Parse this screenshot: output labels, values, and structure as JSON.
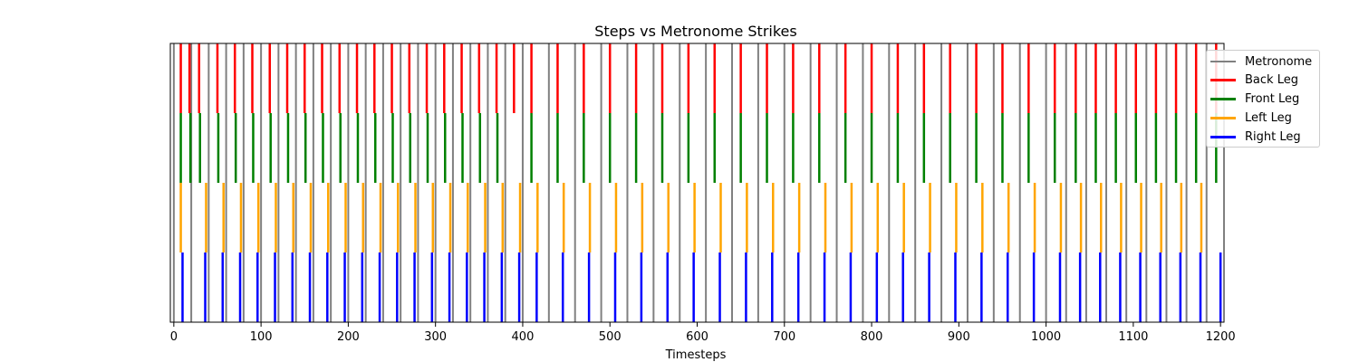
{
  "chart_data": {
    "type": "event_raster",
    "title": "Steps vs Metronome Strikes",
    "xlabel": "Timesteps",
    "ylabel": "",
    "xlim": [
      -4,
      1204
    ],
    "xticks": [
      0,
      100,
      200,
      300,
      400,
      500,
      600,
      700,
      800,
      900,
      1000,
      1100,
      1200
    ],
    "grid": false,
    "legend_position": "upper-right-outside",
    "metronome": {
      "name": "Metronome",
      "color": "#808080",
      "times": [
        0,
        20,
        40,
        60,
        80,
        100,
        120,
        140,
        160,
        180,
        200,
        220,
        240,
        260,
        280,
        300,
        320,
        340,
        360,
        380,
        400,
        430,
        460,
        490,
        520,
        550,
        580,
        610,
        640,
        670,
        700,
        730,
        760,
        790,
        820,
        850,
        880,
        910,
        940,
        970,
        1000,
        1023,
        1046,
        1069,
        1092,
        1115,
        1138,
        1161,
        1184
      ]
    },
    "series": [
      {
        "name": "Back Leg",
        "color": "#ff0000",
        "times": [
          8,
          18,
          29,
          50,
          70,
          90,
          110,
          130,
          150,
          170,
          190,
          210,
          230,
          250,
          270,
          290,
          310,
          330,
          350,
          370,
          390,
          410,
          440,
          470,
          500,
          530,
          560,
          590,
          620,
          650,
          680,
          710,
          740,
          770,
          800,
          830,
          860,
          890,
          920,
          950,
          980,
          1010,
          1034,
          1057,
          1080,
          1103,
          1126,
          1149,
          1172,
          1195
        ]
      },
      {
        "name": "Front Leg",
        "color": "#008000",
        "times": [
          8,
          19,
          30,
          51,
          71,
          91,
          111,
          131,
          151,
          171,
          191,
          211,
          231,
          251,
          271,
          291,
          311,
          331,
          351,
          371,
          410,
          440,
          470,
          500,
          530,
          560,
          590,
          620,
          650,
          680,
          710,
          740,
          770,
          800,
          830,
          860,
          890,
          920,
          950,
          980,
          1010,
          1034,
          1057,
          1080,
          1103,
          1126,
          1149,
          1172,
          1195
        ]
      },
      {
        "name": "Left Leg",
        "color": "#ffa500",
        "times": [
          8,
          37,
          57,
          77,
          97,
          117,
          137,
          157,
          177,
          197,
          217,
          237,
          257,
          277,
          297,
          317,
          337,
          357,
          377,
          397,
          417,
          447,
          477,
          507,
          537,
          567,
          597,
          627,
          657,
          687,
          717,
          747,
          777,
          807,
          837,
          867,
          897,
          927,
          957,
          987,
          1017,
          1040,
          1063,
          1086,
          1109,
          1132,
          1155,
          1178
        ]
      },
      {
        "name": "Right Leg",
        "color": "#0000ff",
        "times": [
          10,
          36,
          56,
          76,
          96,
          116,
          136,
          156,
          176,
          196,
          216,
          236,
          256,
          276,
          296,
          316,
          336,
          356,
          376,
          396,
          416,
          446,
          476,
          506,
          536,
          566,
          596,
          626,
          656,
          686,
          716,
          746,
          776,
          806,
          836,
          866,
          896,
          926,
          956,
          986,
          1016,
          1039,
          1062,
          1085,
          1108,
          1131,
          1154,
          1177,
          1200
        ]
      }
    ]
  }
}
